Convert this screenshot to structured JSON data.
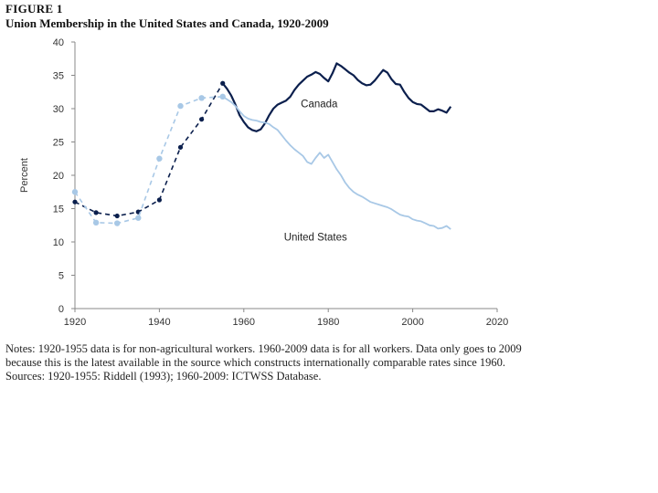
{
  "figure_label": "FIGURE 1",
  "notes": {
    "line1": "Notes: 1920-1955 data is for non-agricultural workers. 1960-2009 data is for all workers. Data only goes to 2009",
    "line2": "because this is the latest available in the source which constructs internationally comparable rates since 1960.",
    "line3": "Sources: 1920-1955: Riddell (1993); 1960-2009: ICTWSS Database."
  },
  "chart_data": {
    "type": "line",
    "title": "Union Membership in the United States and Canada, 1920-2009",
    "xlabel": "",
    "ylabel": "Percent",
    "xlim": [
      1920,
      2020
    ],
    "ylim": [
      0,
      40
    ],
    "x_ticks": [
      1920,
      1940,
      1960,
      1980,
      2000,
      2020
    ],
    "y_ticks": [
      0,
      5,
      10,
      15,
      20,
      25,
      30,
      35,
      40
    ],
    "grid": false,
    "series": [
      {
        "name": "Canada",
        "color": "#0b1f4d",
        "label": "Canada",
        "early_points_dashed": [
          [
            1920,
            16.0
          ],
          [
            1925,
            14.4
          ],
          [
            1930,
            13.9
          ],
          [
            1935,
            14.5
          ],
          [
            1940,
            16.3
          ],
          [
            1945,
            24.2
          ],
          [
            1950,
            28.4
          ],
          [
            1955,
            33.8
          ]
        ],
        "line": [
          [
            1955,
            33.8
          ],
          [
            1956,
            33.0
          ],
          [
            1957,
            32.0
          ],
          [
            1958,
            30.6
          ],
          [
            1959,
            29.0
          ],
          [
            1960,
            28.0
          ],
          [
            1961,
            27.2
          ],
          [
            1962,
            26.8
          ],
          [
            1963,
            26.6
          ],
          [
            1964,
            26.9
          ],
          [
            1965,
            27.8
          ],
          [
            1966,
            29.0
          ],
          [
            1967,
            30.0
          ],
          [
            1968,
            30.6
          ],
          [
            1969,
            30.9
          ],
          [
            1970,
            31.2
          ],
          [
            1971,
            31.8
          ],
          [
            1972,
            32.8
          ],
          [
            1973,
            33.6
          ],
          [
            1974,
            34.2
          ],
          [
            1975,
            34.8
          ],
          [
            1976,
            35.1
          ],
          [
            1977,
            35.5
          ],
          [
            1978,
            35.2
          ],
          [
            1979,
            34.6
          ],
          [
            1980,
            34.1
          ],
          [
            1981,
            35.3
          ],
          [
            1982,
            36.8
          ],
          [
            1983,
            36.4
          ],
          [
            1984,
            35.9
          ],
          [
            1985,
            35.4
          ],
          [
            1986,
            35.0
          ],
          [
            1987,
            34.3
          ],
          [
            1988,
            33.8
          ],
          [
            1989,
            33.5
          ],
          [
            1990,
            33.6
          ],
          [
            1991,
            34.2
          ],
          [
            1992,
            35.0
          ],
          [
            1993,
            35.8
          ],
          [
            1994,
            35.4
          ],
          [
            1995,
            34.4
          ],
          [
            1996,
            33.7
          ],
          [
            1997,
            33.6
          ],
          [
            1998,
            32.5
          ],
          [
            1999,
            31.6
          ],
          [
            2000,
            31.0
          ],
          [
            2001,
            30.7
          ],
          [
            2002,
            30.6
          ],
          [
            2003,
            30.1
          ],
          [
            2004,
            29.6
          ],
          [
            2005,
            29.6
          ],
          [
            2006,
            29.9
          ],
          [
            2007,
            29.7
          ],
          [
            2008,
            29.4
          ],
          [
            2009,
            30.3
          ]
        ]
      },
      {
        "name": "United States",
        "color": "#a8c8e6",
        "label": "United States",
        "early_points_dashed": [
          [
            1920,
            17.5
          ],
          [
            1925,
            12.9
          ],
          [
            1930,
            12.8
          ],
          [
            1935,
            13.6
          ],
          [
            1940,
            22.5
          ],
          [
            1945,
            30.4
          ],
          [
            1950,
            31.6
          ],
          [
            1955,
            31.8
          ]
        ],
        "line": [
          [
            1955,
            31.8
          ],
          [
            1956,
            31.4
          ],
          [
            1957,
            31.0
          ],
          [
            1958,
            30.4
          ],
          [
            1959,
            29.6
          ],
          [
            1960,
            28.9
          ],
          [
            1961,
            28.5
          ],
          [
            1962,
            28.3
          ],
          [
            1963,
            28.2
          ],
          [
            1964,
            28.0
          ],
          [
            1965,
            27.9
          ],
          [
            1966,
            27.7
          ],
          [
            1967,
            27.2
          ],
          [
            1968,
            26.8
          ],
          [
            1969,
            26.0
          ],
          [
            1970,
            25.2
          ],
          [
            1971,
            24.5
          ],
          [
            1972,
            23.9
          ],
          [
            1973,
            23.4
          ],
          [
            1974,
            22.9
          ],
          [
            1975,
            22.0
          ],
          [
            1976,
            21.7
          ],
          [
            1977,
            22.6
          ],
          [
            1978,
            23.4
          ],
          [
            1979,
            22.6
          ],
          [
            1980,
            23.1
          ],
          [
            1981,
            22.0
          ],
          [
            1982,
            20.9
          ],
          [
            1983,
            20.0
          ],
          [
            1984,
            18.9
          ],
          [
            1985,
            18.1
          ],
          [
            1986,
            17.5
          ],
          [
            1987,
            17.1
          ],
          [
            1988,
            16.8
          ],
          [
            1989,
            16.4
          ],
          [
            1990,
            16.0
          ],
          [
            1991,
            15.8
          ],
          [
            1992,
            15.6
          ],
          [
            1993,
            15.4
          ],
          [
            1994,
            15.2
          ],
          [
            1995,
            14.9
          ],
          [
            1996,
            14.5
          ],
          [
            1997,
            14.1
          ],
          [
            1998,
            13.9
          ],
          [
            1999,
            13.8
          ],
          [
            2000,
            13.4
          ],
          [
            2001,
            13.2
          ],
          [
            2002,
            13.1
          ],
          [
            2003,
            12.8
          ],
          [
            2004,
            12.5
          ],
          [
            2005,
            12.4
          ],
          [
            2006,
            12.0
          ],
          [
            2007,
            12.1
          ],
          [
            2008,
            12.4
          ],
          [
            2009,
            11.9
          ]
        ]
      }
    ]
  }
}
